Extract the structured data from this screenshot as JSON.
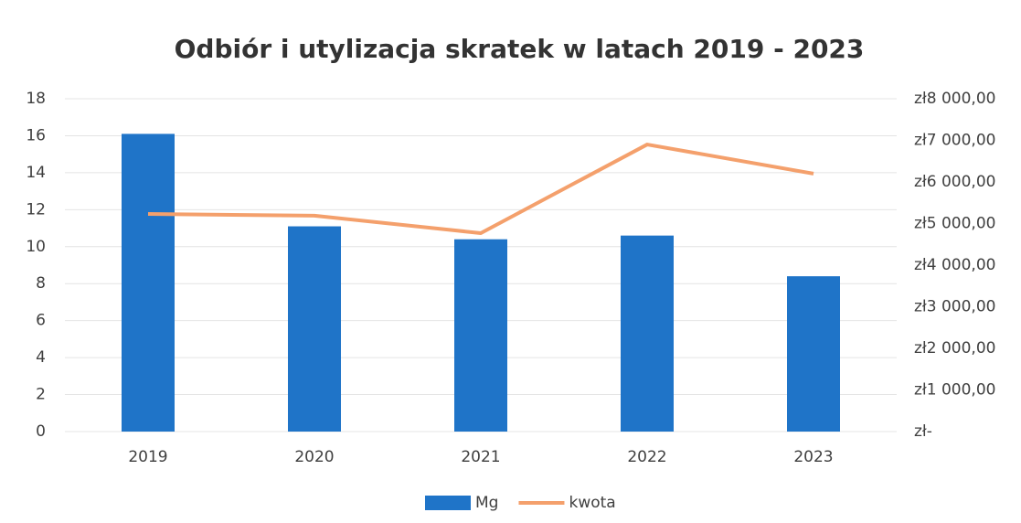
{
  "chart_data": {
    "type": "combo",
    "title": "Odbiór i utylizacja skratek w latach 2019 - 2023",
    "categories": [
      "2019",
      "2020",
      "2021",
      "2022",
      "2023"
    ],
    "series": [
      {
        "name": "Mg",
        "type": "bar",
        "color": "#1f74c8",
        "values": [
          16.1,
          11.1,
          10.4,
          10.6,
          8.4
        ]
      },
      {
        "name": "kwota",
        "type": "line",
        "axis": "y2",
        "color": "#f4a06c",
        "values": [
          5230,
          5190,
          4770,
          6900,
          6200
        ]
      }
    ],
    "ylim": [
      0,
      18
    ],
    "yticks": [
      0,
      2,
      4,
      6,
      8,
      10,
      12,
      14,
      16,
      18
    ],
    "y2lim": [
      0,
      8000
    ],
    "y2ticks": [
      {
        "value": 0,
        "label": "zł-"
      },
      {
        "value": 1000,
        "label": "zł1 000,00"
      },
      {
        "value": 2000,
        "label": "zł2 000,00"
      },
      {
        "value": 3000,
        "label": "zł3 000,00"
      },
      {
        "value": 4000,
        "label": "zł4 000,00"
      },
      {
        "value": 5000,
        "label": "zł5 000,00"
      },
      {
        "value": 6000,
        "label": "zł6 000,00"
      },
      {
        "value": 7000,
        "label": "zł7 000,00"
      },
      {
        "value": 8000,
        "label": "zł8 000,00"
      }
    ],
    "grid": true,
    "legend": "bottom"
  }
}
